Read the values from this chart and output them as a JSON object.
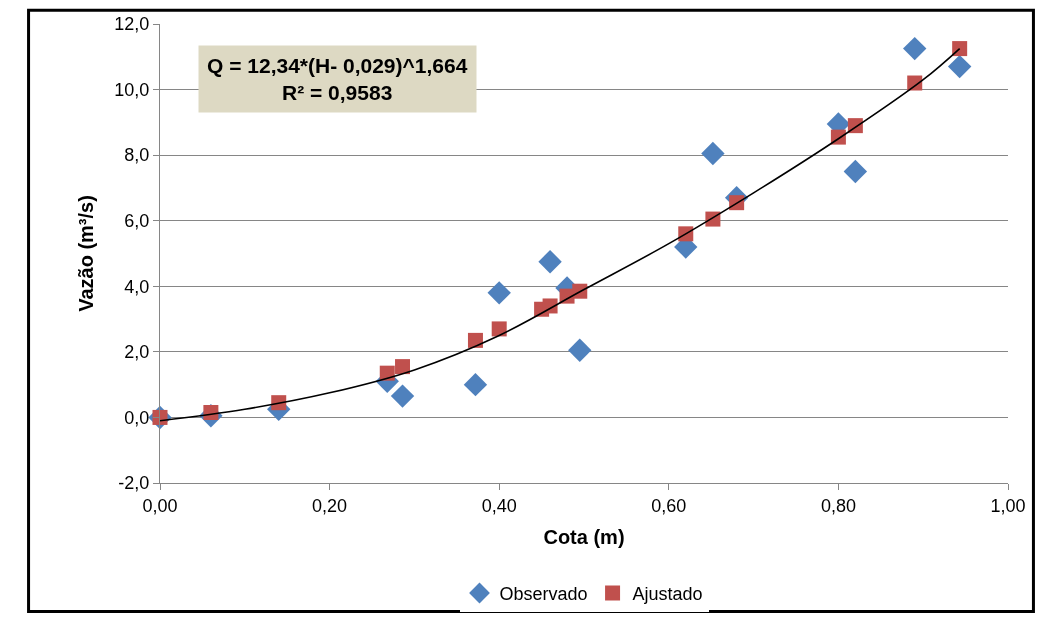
{
  "chart_data": {
    "type": "scatter",
    "xlabel": "Cota (m)",
    "ylabel": "Vazão (m³/s)",
    "annotations": [
      "Q = 12,34*(H- 0,029)^1,664\nR² = 0,9583"
    ],
    "series": [
      {
        "name": "Observado",
        "color": "#4f81bd",
        "marker": "diamond",
        "x": [
          0.0,
          0.06,
          0.14,
          0.268,
          0.286,
          0.372,
          0.4,
          0.46,
          0.48,
          0.495,
          0.62,
          0.652,
          0.68,
          0.8,
          0.82,
          0.89,
          0.943
        ],
        "values": [
          0.0,
          0.05,
          0.25,
          1.1,
          0.65,
          1.0,
          3.8,
          4.75,
          3.95,
          2.05,
          5.2,
          8.05,
          6.7,
          8.95,
          7.5,
          11.25,
          10.7
        ]
      },
      {
        "name": "Ajustado",
        "color": "#c0504d",
        "marker": "square",
        "x": [
          0.0,
          0.06,
          0.14,
          0.268,
          0.286,
          0.372,
          0.4,
          0.45,
          0.46,
          0.48,
          0.495,
          0.62,
          0.652,
          0.68,
          0.8,
          0.82,
          0.89,
          0.943
        ],
        "values": [
          0.0,
          0.15,
          0.45,
          1.35,
          1.55,
          2.35,
          2.7,
          3.3,
          3.4,
          3.7,
          3.85,
          5.6,
          6.05,
          6.55,
          8.55,
          8.9,
          10.2,
          11.25
        ]
      },
      {
        "type": "line",
        "color": "#000000",
        "marker": "none",
        "x": [
          0.0,
          0.1,
          0.2,
          0.3,
          0.4,
          0.5,
          0.6,
          0.7,
          0.8,
          0.9,
          0.943
        ],
        "values": [
          -0.1,
          0.25,
          0.75,
          1.45,
          2.5,
          3.9,
          5.3,
          6.85,
          8.5,
          10.3,
          11.25
        ]
      }
    ],
    "xlim": [
      0,
      1
    ],
    "xticks": [
      {
        "value": 0,
        "label": "0,00"
      },
      {
        "value": 0.2,
        "label": "0,20"
      },
      {
        "value": 0.4,
        "label": "0,40"
      },
      {
        "value": 0.6,
        "label": "0,60"
      },
      {
        "value": 0.8,
        "label": "0,80"
      },
      {
        "value": 1,
        "label": "1,00"
      }
    ],
    "ylim": [
      -2,
      12
    ],
    "yticks": [
      {
        "value": -2,
        "label": "-2,0"
      },
      {
        "value": 0,
        "label": "0,0"
      },
      {
        "value": 2,
        "label": "2,0"
      },
      {
        "value": 4,
        "label": "4,0"
      },
      {
        "value": 6,
        "label": "6,0"
      },
      {
        "value": 8,
        "label": "8,0"
      },
      {
        "value": 10,
        "label": "10,0"
      },
      {
        "value": 12,
        "label": "12,0"
      }
    ],
    "grid": "y",
    "legend": "bottom"
  }
}
